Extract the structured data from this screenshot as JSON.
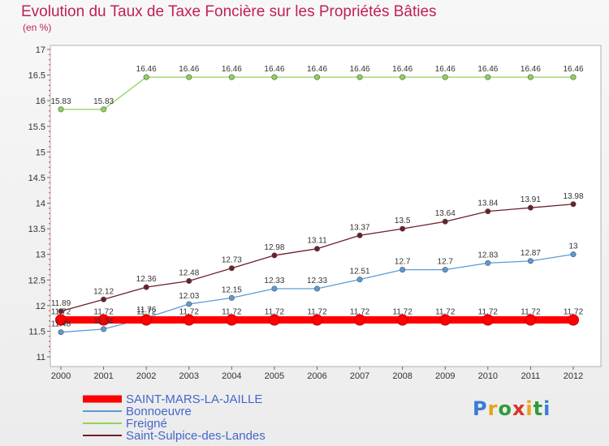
{
  "title": "Evolution du Taux de Taxe Foncière sur les Propriétés Bâties",
  "unit": "(en %)",
  "logo": "Proxiti",
  "chart_data": {
    "type": "line",
    "x": [
      "2000",
      "2001",
      "2002",
      "2003",
      "2004",
      "2005",
      "2006",
      "2007",
      "2008",
      "2009",
      "2010",
      "2011",
      "2012"
    ],
    "ylim": [
      11,
      17
    ],
    "yticks": [
      "11",
      "11.5",
      "12",
      "12.5",
      "13",
      "13.5",
      "14",
      "14.5",
      "15",
      "15.5",
      "16",
      "16.5",
      "17"
    ],
    "grid": false,
    "legend": "bottom-left",
    "series": [
      {
        "name": "SAINT-MARS-LA-JAILLE",
        "color": "#ff0000",
        "values": [
          11.72,
          11.72,
          11.72,
          11.72,
          11.72,
          11.72,
          11.72,
          11.72,
          11.72,
          11.72,
          11.72,
          11.72,
          11.72
        ],
        "labels": [
          "11.72",
          "11.72",
          "11.72",
          "11.72",
          "11.72",
          "11.72",
          "11.72",
          "11.72",
          "11.72",
          "11.72",
          "11.72",
          "11.72",
          "11.72"
        ]
      },
      {
        "name": "Bonnoeuvre",
        "color": "#5b9bd5",
        "values": [
          11.48,
          11.54,
          11.76,
          12.03,
          12.15,
          12.33,
          12.33,
          12.51,
          12.7,
          12.7,
          12.83,
          12.87,
          13
        ],
        "labels": [
          "11.48",
          "11.54",
          "11.76",
          "12.03",
          "12.15",
          "12.33",
          "12.33",
          "12.51",
          "12.7",
          "12.7",
          "12.83",
          "12.87",
          "13"
        ]
      },
      {
        "name": "Freigné",
        "color": "#8fd35a",
        "values": [
          15.83,
          15.83,
          16.46,
          16.46,
          16.46,
          16.46,
          16.46,
          16.46,
          16.46,
          16.46,
          16.46,
          16.46,
          16.46
        ],
        "labels": [
          "15.83",
          "15.83",
          "16.46",
          "16.46",
          "16.46",
          "16.46",
          "16.46",
          "16.46",
          "16.46",
          "16.46",
          "16.46",
          "16.46",
          "16.46"
        ]
      },
      {
        "name": "Saint-Sulpice-des-Landes",
        "color": "#6b1f2b",
        "values": [
          11.89,
          12.12,
          12.36,
          12.48,
          12.73,
          12.98,
          13.11,
          13.37,
          13.5,
          13.64,
          13.84,
          13.91,
          13.98
        ],
        "labels": [
          "11.89",
          "12.12",
          "12.36",
          "12.48",
          "12.73",
          "12.98",
          "13.11",
          "13.37",
          "13.5",
          "13.64",
          "13.84",
          "13.91",
          "13.98"
        ]
      }
    ]
  }
}
